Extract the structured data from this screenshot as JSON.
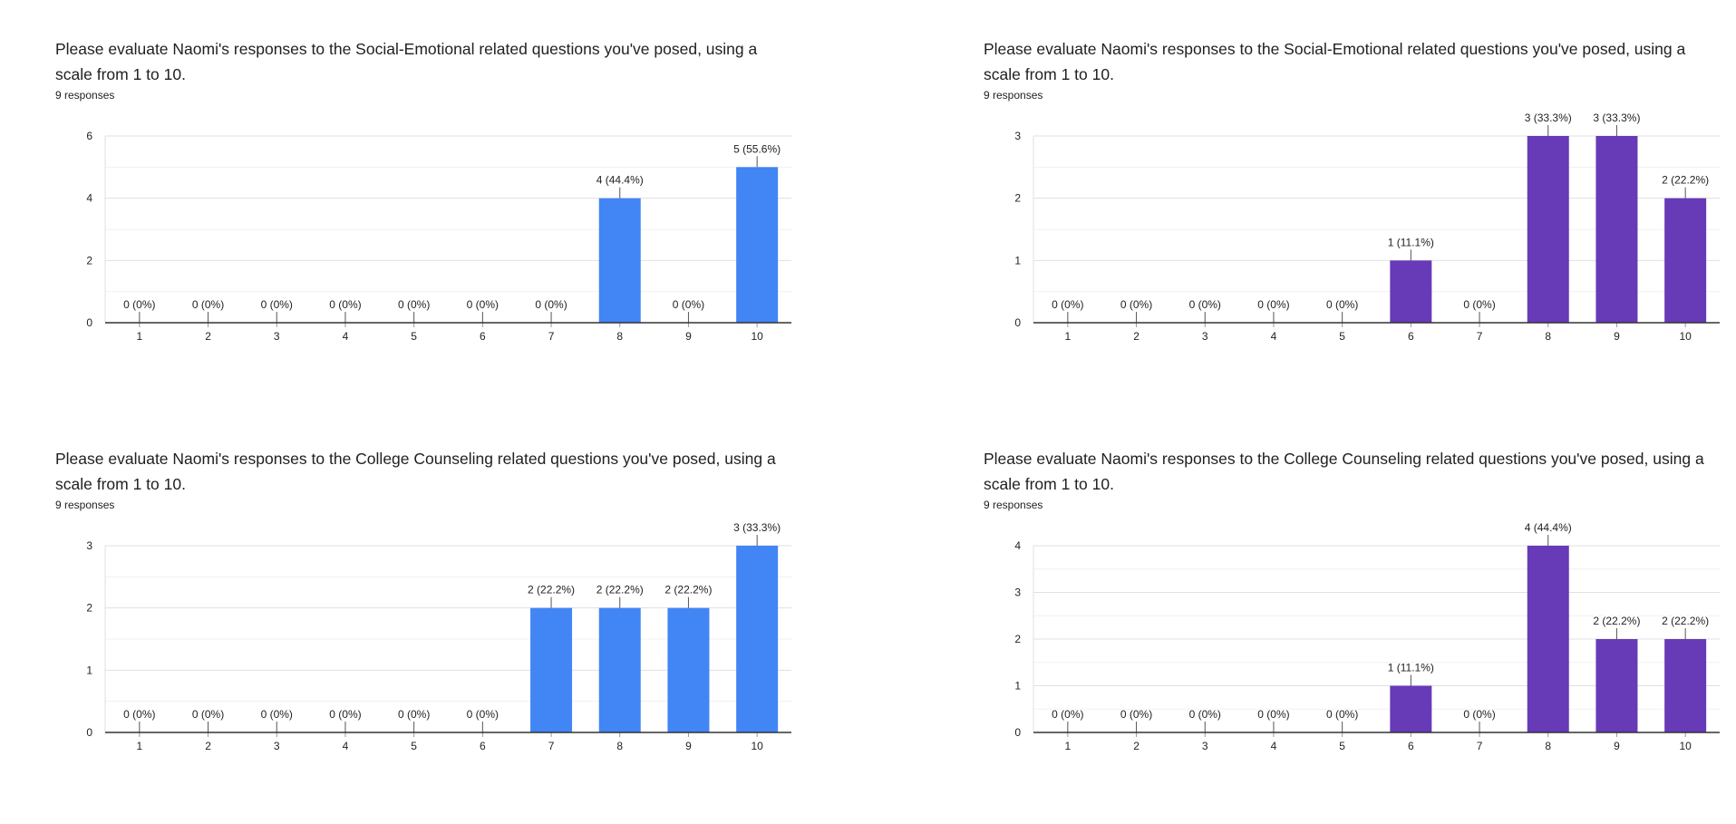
{
  "charts": [
    {
      "question": "Please evaluate Naomi's responses to the Social-Emotional related questions you've posed, using a scale from 1 to 10.",
      "responses": "9 responses",
      "color": "#4285f4",
      "ymax": 6,
      "yticks": [
        "0",
        "2",
        "4",
        "6"
      ],
      "categories": [
        "1",
        "2",
        "3",
        "4",
        "5",
        "6",
        "7",
        "8",
        "9",
        "10"
      ],
      "values": [
        0,
        0,
        0,
        0,
        0,
        0,
        0,
        4,
        0,
        5
      ],
      "labels": [
        "0 (0%)",
        "0 (0%)",
        "0 (0%)",
        "0 (0%)",
        "0 (0%)",
        "0 (0%)",
        "0 (0%)",
        "4 (44.4%)",
        "0 (0%)",
        "5 (55.6%)"
      ]
    },
    {
      "question": "Please evaluate Naomi's responses to the Social-Emotional related questions you've posed, using a scale from 1 to 10.",
      "responses": "9 responses",
      "color": "#673ab7",
      "ymax": 3,
      "yticks": [
        "0",
        "1",
        "2",
        "3"
      ],
      "categories": [
        "1",
        "2",
        "3",
        "4",
        "5",
        "6",
        "7",
        "8",
        "9",
        "10"
      ],
      "values": [
        0,
        0,
        0,
        0,
        0,
        1,
        0,
        3,
        3,
        2
      ],
      "labels": [
        "0 (0%)",
        "0 (0%)",
        "0 (0%)",
        "0 (0%)",
        "0 (0%)",
        "1 (11.1%)",
        "0 (0%)",
        "3 (33.3%)",
        "3 (33.3%)",
        "2 (22.2%)"
      ]
    },
    {
      "question": "Please evaluate Naomi's responses to the College Counseling related questions you've posed, using a scale from 1 to 10.",
      "responses": "9 responses",
      "color": "#4285f4",
      "ymax": 3,
      "yticks": [
        "0",
        "1",
        "2",
        "3"
      ],
      "categories": [
        "1",
        "2",
        "3",
        "4",
        "5",
        "6",
        "7",
        "8",
        "9",
        "10"
      ],
      "values": [
        0,
        0,
        0,
        0,
        0,
        0,
        2,
        2,
        2,
        3
      ],
      "labels": [
        "0 (0%)",
        "0 (0%)",
        "0 (0%)",
        "0 (0%)",
        "0 (0%)",
        "0 (0%)",
        "2 (22.2%)",
        "2 (22.2%)",
        "2 (22.2%)",
        "3 (33.3%)"
      ]
    },
    {
      "question": "Please evaluate Naomi's responses to the College Counseling related questions you've posed, using a scale from 1 to 10.",
      "responses": "9 responses",
      "color": "#673ab7",
      "ymax": 4,
      "yticks": [
        "0",
        "1",
        "2",
        "3",
        "4"
      ],
      "categories": [
        "1",
        "2",
        "3",
        "4",
        "5",
        "6",
        "7",
        "8",
        "9",
        "10"
      ],
      "values": [
        0,
        0,
        0,
        0,
        0,
        1,
        0,
        4,
        2,
        2
      ],
      "labels": [
        "0 (0%)",
        "0 (0%)",
        "0 (0%)",
        "0 (0%)",
        "0 (0%)",
        "1 (11.1%)",
        "0 (0%)",
        "4 (44.4%)",
        "2 (22.2%)",
        "2 (22.2%)"
      ]
    }
  ],
  "chart_data": [
    {
      "type": "bar",
      "title": "Please evaluate Naomi's responses to the Social-Emotional related questions you've posed, using a scale from 1 to 10.",
      "categories": [
        "1",
        "2",
        "3",
        "4",
        "5",
        "6",
        "7",
        "8",
        "9",
        "10"
      ],
      "values": [
        0,
        0,
        0,
        0,
        0,
        0,
        0,
        4,
        0,
        5
      ],
      "ylim": [
        0,
        6
      ],
      "grid": true
    },
    {
      "type": "bar",
      "title": "Please evaluate Naomi's responses to the Social-Emotional related questions you've posed, using a scale from 1 to 10.",
      "categories": [
        "1",
        "2",
        "3",
        "4",
        "5",
        "6",
        "7",
        "8",
        "9",
        "10"
      ],
      "values": [
        0,
        0,
        0,
        0,
        0,
        1,
        0,
        3,
        3,
        2
      ],
      "ylim": [
        0,
        3
      ],
      "grid": true
    },
    {
      "type": "bar",
      "title": "Please evaluate Naomi's responses to the College Counseling related questions you've posed, using a scale from 1 to 10.",
      "categories": [
        "1",
        "2",
        "3",
        "4",
        "5",
        "6",
        "7",
        "8",
        "9",
        "10"
      ],
      "values": [
        0,
        0,
        0,
        0,
        0,
        0,
        2,
        2,
        2,
        3
      ],
      "ylim": [
        0,
        3
      ],
      "grid": true
    },
    {
      "type": "bar",
      "title": "Please evaluate Naomi's responses to the College Counseling related questions you've posed, using a scale from 1 to 10.",
      "categories": [
        "1",
        "2",
        "3",
        "4",
        "5",
        "6",
        "7",
        "8",
        "9",
        "10"
      ],
      "values": [
        0,
        0,
        0,
        0,
        0,
        1,
        0,
        4,
        2,
        2
      ],
      "ylim": [
        0,
        4
      ],
      "grid": true
    }
  ]
}
